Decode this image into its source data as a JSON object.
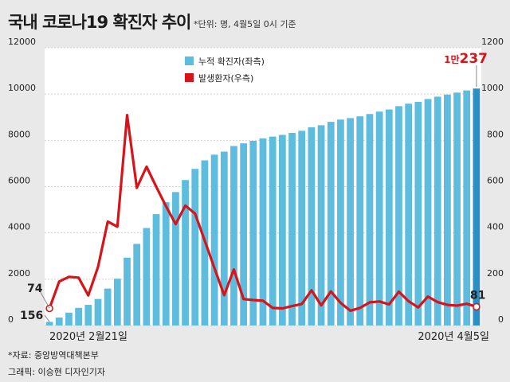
{
  "header": {
    "title": "국내 코로나19 확진자 추이",
    "unit_note": "*단위: 명, 4월5일 0시 기준"
  },
  "footer": {
    "source": "*자료: 중앙방역대책본부",
    "credit": "그래픽: 이승현 디자인기자"
  },
  "chart_data": {
    "type": "bar",
    "title": "국내 코로나19 확진자 추이",
    "x_start_label": "2020년 2월21일",
    "x_end_label": "2020년 4월5일",
    "left_axis": {
      "min": 0,
      "max": 12000,
      "ticks": [
        "0",
        "2000",
        "4000",
        "6000",
        "8000",
        "10000",
        "12000"
      ]
    },
    "right_axis": {
      "min": 0,
      "max": 1200,
      "ticks": [
        "0",
        "200",
        "400",
        "600",
        "800",
        "1000",
        "1200"
      ]
    },
    "legend": {
      "position": "top-center",
      "bar_label": "누적 확진자(좌측)",
      "line_label": "발생환자(우측)"
    },
    "series": [
      {
        "name": "누적 확진자(좌측)",
        "kind": "bar",
        "axis": "left",
        "values": [
          156,
          346,
          556,
          763,
          893,
          1146,
          1595,
          2022,
          2931,
          3526,
          4212,
          4812,
          5328,
          5766,
          6284,
          6767,
          7134,
          7382,
          7513,
          7755,
          7869,
          7979,
          8086,
          8162,
          8236,
          8320,
          8413,
          8565,
          8652,
          8799,
          8897,
          8961,
          9037,
          9137,
          9241,
          9332,
          9478,
          9583,
          9661,
          9786,
          9887,
          9976,
          10062,
          10156,
          10237
        ]
      },
      {
        "name": "발생환자(우측)",
        "kind": "line",
        "axis": "right",
        "values": [
          74,
          190,
          210,
          207,
          130,
          253,
          449,
          427,
          909,
          595,
          686,
          600,
          516,
          438,
          518,
          483,
          367,
          248,
          131,
          242,
          114,
          110,
          107,
          76,
          74,
          84,
          93,
          152,
          87,
          147,
          98,
          64,
          76,
          100,
          104,
          91,
          146,
          105,
          78,
          125,
          101,
          89,
          86,
          94,
          81
        ]
      }
    ],
    "annotations": {
      "first_bar": "156",
      "first_line": "74",
      "last_bar_prefix": "1만",
      "last_bar_suffix": "237",
      "last_line": "81"
    },
    "colors": {
      "bar": "#5ebddf",
      "bar_last": "#2b8fc4",
      "line": "#d7141a",
      "plot_bg": "#ffffff",
      "page_bg": "#e9e9e9"
    }
  }
}
